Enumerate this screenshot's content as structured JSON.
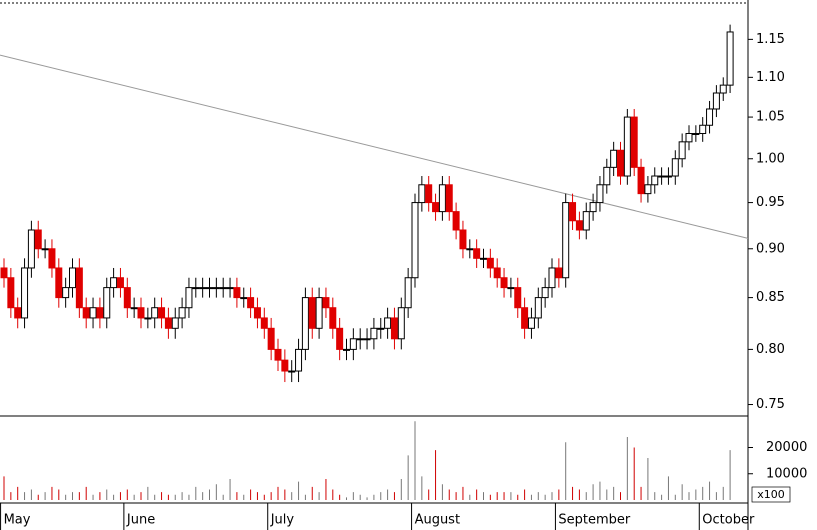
{
  "chart_data": {
    "type": "candlestick",
    "log_scale": true,
    "ylim": [
      0.74,
      1.2
    ],
    "yticks": [
      0.75,
      {
        "value": 0.8,
        "label": "0.80"
      },
      0.85,
      {
        "value": 0.9,
        "label": "0.90"
      },
      0.95,
      {
        "value": 1.0,
        "label": "1.00"
      },
      1.05,
      {
        "value": 1.1,
        "label": "1.10"
      },
      1.15
    ],
    "up_color": "#ffffff",
    "down_color": "#e00000",
    "categories": [
      "May",
      null,
      null,
      null,
      null,
      null,
      null,
      null,
      null,
      null,
      null,
      null,
      null,
      null,
      null,
      null,
      null,
      null,
      "June",
      null,
      null,
      null,
      null,
      null,
      null,
      null,
      null,
      null,
      null,
      null,
      null,
      null,
      null,
      null,
      null,
      null,
      null,
      null,
      null,
      "July",
      null,
      null,
      null,
      null,
      null,
      null,
      null,
      null,
      null,
      null,
      null,
      null,
      null,
      null,
      null,
      null,
      null,
      null,
      null,
      null,
      "August",
      null,
      null,
      null,
      null,
      null,
      null,
      null,
      null,
      null,
      null,
      null,
      null,
      null,
      null,
      null,
      null,
      null,
      null,
      null,
      null,
      "September",
      null,
      null,
      null,
      null,
      null,
      null,
      null,
      null,
      null,
      null,
      null,
      null,
      null,
      null,
      null,
      null,
      null,
      null,
      null,
      null,
      "October",
      null,
      null,
      null,
      null
    ],
    "open": [
      0.88,
      0.87,
      0.84,
      0.83,
      0.88,
      0.92,
      0.9,
      0.9,
      0.88,
      0.85,
      0.86,
      0.88,
      0.84,
      0.83,
      0.84,
      0.83,
      0.86,
      0.87,
      0.86,
      0.84,
      0.84,
      0.83,
      0.83,
      0.84,
      0.83,
      0.82,
      0.83,
      0.84,
      0.86,
      0.86,
      0.86,
      0.86,
      0.86,
      0.86,
      0.86,
      0.85,
      0.85,
      0.84,
      0.83,
      0.82,
      0.8,
      0.79,
      0.78,
      0.78,
      0.8,
      0.85,
      0.82,
      0.85,
      0.84,
      0.82,
      0.8,
      0.8,
      0.81,
      0.81,
      0.81,
      0.82,
      0.82,
      0.83,
      0.81,
      0.84,
      0.87,
      0.95,
      0.97,
      0.95,
      0.94,
      0.97,
      0.94,
      0.92,
      0.9,
      0.9,
      0.89,
      0.89,
      0.88,
      0.87,
      0.86,
      0.86,
      0.84,
      0.82,
      0.83,
      0.85,
      0.86,
      0.88,
      0.87,
      0.95,
      0.93,
      0.92,
      0.94,
      0.95,
      0.97,
      0.99,
      1.01,
      0.98,
      1.05,
      0.99,
      0.96,
      0.97,
      0.98,
      0.98,
      0.98,
      1.0,
      1.02,
      1.03,
      1.03,
      1.04,
      1.06,
      1.08,
      1.09
    ],
    "high": [
      0.89,
      0.88,
      0.85,
      0.89,
      0.93,
      0.93,
      0.91,
      0.91,
      0.89,
      0.87,
      0.89,
      0.89,
      0.85,
      0.85,
      0.85,
      0.87,
      0.88,
      0.88,
      0.87,
      0.85,
      0.85,
      0.84,
      0.85,
      0.85,
      0.84,
      0.84,
      0.85,
      0.87,
      0.87,
      0.87,
      0.87,
      0.87,
      0.87,
      0.87,
      0.87,
      0.86,
      0.86,
      0.85,
      0.84,
      0.83,
      0.81,
      0.8,
      0.79,
      0.81,
      0.86,
      0.86,
      0.86,
      0.86,
      0.85,
      0.83,
      0.81,
      0.82,
      0.82,
      0.82,
      0.83,
      0.83,
      0.84,
      0.84,
      0.85,
      0.88,
      0.96,
      0.98,
      0.98,
      0.96,
      0.98,
      0.98,
      0.95,
      0.93,
      0.91,
      0.91,
      0.9,
      0.9,
      0.89,
      0.88,
      0.87,
      0.87,
      0.85,
      0.84,
      0.86,
      0.87,
      0.89,
      0.89,
      0.96,
      0.96,
      0.94,
      0.95,
      0.96,
      0.98,
      1.0,
      1.02,
      1.02,
      1.06,
      1.06,
      1.0,
      0.98,
      0.99,
      0.99,
      0.99,
      1.01,
      1.03,
      1.04,
      1.04,
      1.05,
      1.07,
      1.09,
      1.1,
      1.17
    ],
    "low": [
      0.86,
      0.83,
      0.82,
      0.82,
      0.87,
      0.89,
      0.89,
      0.87,
      0.84,
      0.84,
      0.85,
      0.83,
      0.82,
      0.82,
      0.82,
      0.82,
      0.85,
      0.85,
      0.83,
      0.83,
      0.82,
      0.82,
      0.82,
      0.82,
      0.81,
      0.81,
      0.82,
      0.83,
      0.85,
      0.85,
      0.85,
      0.85,
      0.85,
      0.85,
      0.84,
      0.84,
      0.83,
      0.82,
      0.81,
      0.79,
      0.78,
      0.77,
      0.77,
      0.77,
      0.79,
      0.81,
      0.81,
      0.83,
      0.81,
      0.79,
      0.79,
      0.79,
      0.8,
      0.8,
      0.8,
      0.81,
      0.81,
      0.8,
      0.8,
      0.83,
      0.86,
      0.94,
      0.94,
      0.93,
      0.93,
      0.93,
      0.91,
      0.89,
      0.89,
      0.88,
      0.88,
      0.87,
      0.86,
      0.85,
      0.85,
      0.83,
      0.81,
      0.81,
      0.82,
      0.84,
      0.85,
      0.86,
      0.86,
      0.92,
      0.91,
      0.91,
      0.93,
      0.94,
      0.96,
      0.98,
      0.97,
      0.97,
      0.98,
      0.95,
      0.95,
      0.96,
      0.97,
      0.97,
      0.97,
      0.99,
      1.01,
      1.02,
      1.02,
      1.03,
      1.05,
      1.07,
      1.08
    ],
    "close": [
      0.87,
      0.84,
      0.83,
      0.88,
      0.92,
      0.9,
      0.9,
      0.88,
      0.85,
      0.86,
      0.88,
      0.84,
      0.83,
      0.84,
      0.83,
      0.86,
      0.87,
      0.86,
      0.84,
      0.84,
      0.83,
      0.83,
      0.84,
      0.83,
      0.82,
      0.83,
      0.84,
      0.86,
      0.86,
      0.86,
      0.86,
      0.86,
      0.86,
      0.86,
      0.85,
      0.85,
      0.84,
      0.83,
      0.82,
      0.8,
      0.79,
      0.78,
      0.78,
      0.8,
      0.85,
      0.82,
      0.85,
      0.84,
      0.82,
      0.8,
      0.8,
      0.81,
      0.81,
      0.81,
      0.82,
      0.82,
      0.83,
      0.81,
      0.84,
      0.87,
      0.95,
      0.97,
      0.95,
      0.94,
      0.97,
      0.94,
      0.92,
      0.9,
      0.9,
      0.89,
      0.89,
      0.88,
      0.87,
      0.86,
      0.86,
      0.84,
      0.82,
      0.83,
      0.85,
      0.86,
      0.88,
      0.87,
      0.95,
      0.93,
      0.92,
      0.94,
      0.95,
      0.97,
      0.99,
      1.01,
      0.98,
      1.05,
      0.99,
      0.96,
      0.97,
      0.98,
      0.98,
      0.98,
      1.0,
      1.02,
      1.03,
      1.03,
      1.04,
      1.06,
      1.08,
      1.09,
      1.16
    ],
    "trendline": {
      "color": "#999999",
      "values": [
        1.129,
        0.911
      ]
    },
    "volume": {
      "unit_label": "x100",
      "ylim": [
        0,
        32000
      ],
      "yticks": [
        10000,
        20000
      ],
      "up_color": "#777777",
      "down_color": "#d00000",
      "values": [
        9000,
        3000,
        5000,
        3000,
        4000,
        2000,
        3000,
        5000,
        4000,
        2000,
        3000,
        3000,
        5000,
        2000,
        3000,
        4000,
        2000,
        3000,
        4000,
        2000,
        3000,
        5000,
        2000,
        3000,
        2000,
        2000,
        3000,
        2000,
        5000,
        3000,
        4000,
        6000,
        2000,
        8000,
        3000,
        2000,
        4000,
        3000,
        2000,
        3000,
        5000,
        4000,
        3000,
        7000,
        2000,
        5000,
        3000,
        8000,
        4000,
        2000,
        1000,
        3000,
        2000,
        1000,
        2000,
        3000,
        4000,
        3000,
        8000,
        17000,
        30000,
        9000,
        4000,
        19000,
        6000,
        4000,
        3000,
        5000,
        2000,
        4000,
        3000,
        2000,
        3000,
        3000,
        3000,
        2000,
        4000,
        2000,
        3000,
        2000,
        3000,
        4000,
        22000,
        5000,
        4000,
        3000,
        6000,
        7000,
        4000,
        5000,
        3000,
        24000,
        20000,
        5000,
        16000,
        3000,
        2000,
        9000,
        2000,
        6000,
        3000,
        4000,
        5000,
        7000,
        3000,
        5000,
        19000
      ]
    }
  }
}
